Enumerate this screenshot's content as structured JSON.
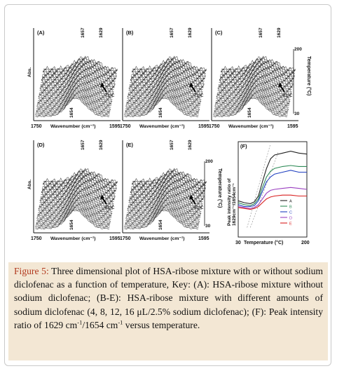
{
  "figure": {
    "caption_label": "Figure 5:",
    "caption_parts": [
      {
        "text": " Three dimensional plot of HSA-ribose mixture with or without sodium diclofenac as a function of temperature, Key: (A): HSA-ribose mixture without sodium diclofenac; (B-E): HSA-ribose mixture with different amounts of sodium diclofenac (4, 8, 12, 16 μL/2.5% sodium diclofenac); (F): Peak intensity ratio of 1629 cm"
      },
      {
        "sup": "-1"
      },
      {
        "text": "/1654 cm"
      },
      {
        "sup": "-1"
      },
      {
        "text": " versus temperature."
      }
    ]
  },
  "colors": {
    "caption_bg": "#f3e7d4",
    "caption_label": "#b23a1f",
    "spectra": "#2b2b2b"
  },
  "chart_data": [
    {
      "type": "area",
      "panel": "(A)",
      "peaks": [
        "1657",
        "1629",
        "1654"
      ],
      "annotation": "78°C",
      "xlabel": "Wavenumber (cm⁻¹)",
      "x_ticks": [
        "1750",
        "1595"
      ],
      "ylabel": "Abs.",
      "z_axis": null,
      "xlim": [
        1750,
        1595
      ]
    },
    {
      "type": "area",
      "panel": "(B)",
      "peaks": [
        "1657",
        "1629",
        "1654"
      ],
      "annotation": "79°C",
      "xlabel": "Wavenumber (cm⁻¹)",
      "x_ticks": [
        "1750",
        "1595"
      ],
      "ylabel": "",
      "z_axis": null,
      "xlim": [
        1750,
        1595
      ]
    },
    {
      "type": "area",
      "panel": "(C)",
      "peaks": [
        "1657",
        "1629",
        "1654"
      ],
      "annotation": "83°C",
      "xlabel": "Wavenumber (cm⁻¹)",
      "x_ticks": [
        "1750",
        "1595"
      ],
      "ylabel": "",
      "z_axis": {
        "label": "Temperature (°C)",
        "ticks": [
          "200",
          "30"
        ]
      },
      "xlim": [
        1750,
        1595
      ]
    },
    {
      "type": "area",
      "panel": "(D)",
      "peaks": [
        "1657",
        "1629",
        "1654"
      ],
      "annotation": "88°C",
      "xlabel": "Wavenumber (cm⁻¹)",
      "x_ticks": [
        "1750",
        "1595"
      ],
      "ylabel": "Abs.",
      "z_axis": null,
      "xlim": [
        1750,
        1595
      ]
    },
    {
      "type": "area",
      "panel": "(E)",
      "peaks": [
        "1657",
        "1629",
        "1654"
      ],
      "annotation": "90°C",
      "xlabel": "Wavenumber (cm⁻¹)",
      "x_ticks": [
        "1750",
        "1595"
      ],
      "ylabel": "",
      "z_axis": {
        "label": "Temperature (°C)",
        "ticks": [
          "200",
          "30"
        ]
      },
      "xlim": [
        1750,
        1595
      ]
    },
    {
      "type": "line",
      "panel": "(F)",
      "xlabel": "Temperature (°C)",
      "ylabel": "Peak intensity ratio of 1629cm⁻¹/1654cm⁻¹",
      "x_ticks": [
        "30",
        "200"
      ],
      "xlim": [
        30,
        200
      ],
      "ylim": [
        0,
        1
      ],
      "legend_position": "right",
      "series": [
        {
          "name": "A",
          "color": "#222222",
          "x": [
            30,
            45,
            60,
            70,
            80,
            90,
            100,
            110,
            120,
            140,
            160,
            180,
            200
          ],
          "y": [
            0.38,
            0.36,
            0.35,
            0.37,
            0.43,
            0.58,
            0.72,
            0.82,
            0.86,
            0.88,
            0.9,
            0.88,
            0.87
          ]
        },
        {
          "name": "B",
          "color": "#2e8b57",
          "x": [
            30,
            45,
            60,
            70,
            80,
            90,
            100,
            110,
            120,
            140,
            160,
            180,
            200
          ],
          "y": [
            0.36,
            0.34,
            0.33,
            0.35,
            0.4,
            0.52,
            0.63,
            0.69,
            0.72,
            0.74,
            0.75,
            0.74,
            0.74
          ]
        },
        {
          "name": "C",
          "color": "#2040c0",
          "x": [
            30,
            45,
            60,
            70,
            80,
            90,
            100,
            110,
            120,
            140,
            160,
            180,
            200
          ],
          "y": [
            0.34,
            0.32,
            0.32,
            0.33,
            0.38,
            0.48,
            0.58,
            0.63,
            0.66,
            0.68,
            0.7,
            0.68,
            0.68
          ]
        },
        {
          "name": "D",
          "color": "#9a3fc0",
          "x": [
            30,
            45,
            60,
            70,
            80,
            90,
            100,
            110,
            120,
            140,
            160,
            180,
            200
          ],
          "y": [
            0.32,
            0.31,
            0.3,
            0.31,
            0.34,
            0.4,
            0.46,
            0.49,
            0.5,
            0.51,
            0.52,
            0.51,
            0.5
          ]
        },
        {
          "name": "E",
          "color": "#d92020",
          "x": [
            30,
            45,
            60,
            70,
            80,
            90,
            100,
            110,
            120,
            140,
            160,
            180,
            200
          ],
          "y": [
            0.31,
            0.3,
            0.29,
            0.3,
            0.32,
            0.36,
            0.4,
            0.42,
            0.43,
            0.44,
            0.44,
            0.43,
            0.43
          ]
        }
      ]
    }
  ]
}
